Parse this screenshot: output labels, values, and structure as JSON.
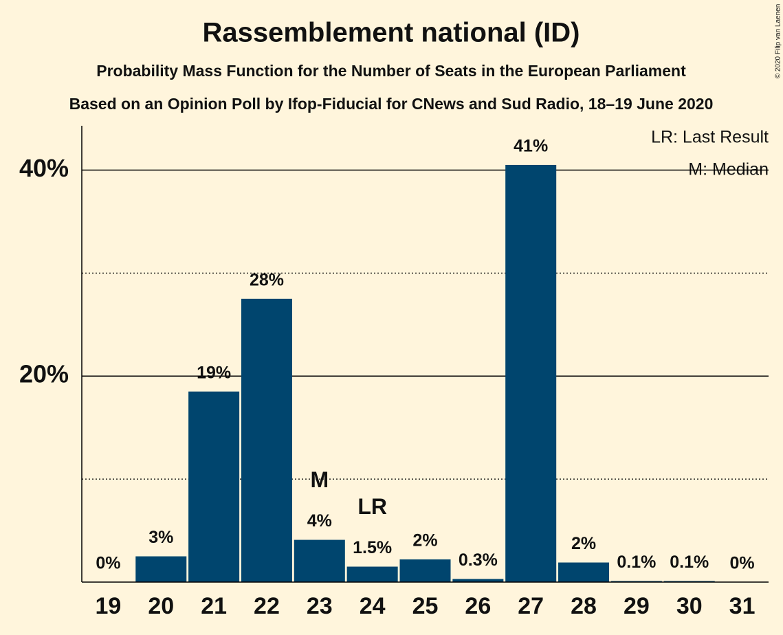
{
  "chart_data": {
    "type": "bar",
    "title": "Rassemblement national (ID)",
    "subtitle": "Probability Mass Function for the Number of Seats in the European Parliament",
    "subtitle2": "Based on an Opinion Poll by Ifop-Fiducial for CNews and Sud Radio, 18–19 June 2020",
    "categories": [
      "19",
      "20",
      "21",
      "22",
      "23",
      "24",
      "25",
      "26",
      "27",
      "28",
      "29",
      "30",
      "31"
    ],
    "values": [
      0,
      2.5,
      18.5,
      27.5,
      4.1,
      1.5,
      2.2,
      0.3,
      40.5,
      1.9,
      0.1,
      0.1,
      0
    ],
    "value_labels": [
      "0%",
      "3%",
      "19%",
      "28%",
      "4%",
      "1.5%",
      "2%",
      "0.3%",
      "41%",
      "2%",
      "0.1%",
      "0.1%",
      "0%"
    ],
    "color": "#00456e",
    "ylim": [
      0,
      44.3
    ],
    "yticks": [
      {
        "value": 20,
        "label": "20%"
      },
      {
        "value": 40,
        "label": "40%"
      }
    ],
    "minor_yticks": [
      10,
      30
    ],
    "grid": true,
    "annotations": [
      {
        "text": "M",
        "category": "23"
      },
      {
        "text": "LR",
        "category": "24"
      }
    ],
    "legend": [
      "LR: Last Result",
      "M: Median"
    ],
    "copyright": "© 2020 Filip van Laenen"
  }
}
